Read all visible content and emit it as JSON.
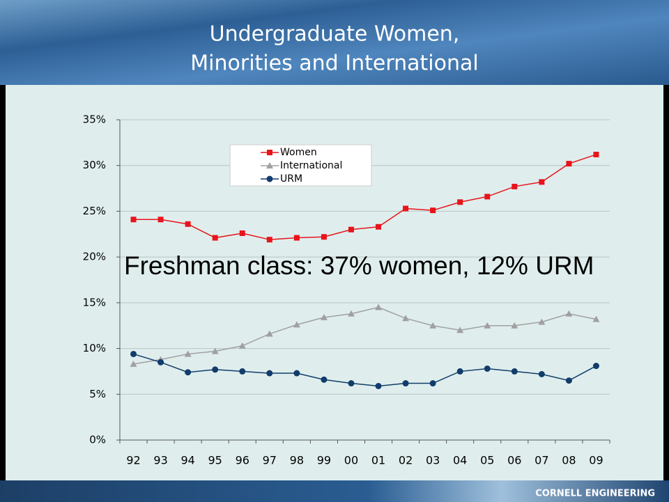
{
  "chart_data": {
    "type": "line",
    "title": [
      "Undergraduate Women,",
      "Minorities and International"
    ],
    "annotation": "Freshman class: 37% women, 12% URM",
    "categories": [
      "92",
      "93",
      "94",
      "95",
      "96",
      "97",
      "98",
      "99",
      "00",
      "01",
      "02",
      "03",
      "04",
      "05",
      "06",
      "07",
      "08",
      "09"
    ],
    "series": [
      {
        "name": "Women",
        "color": "#e8141b",
        "marker": "square",
        "values": [
          24.1,
          24.1,
          23.6,
          22.1,
          22.6,
          21.9,
          22.1,
          22.2,
          23.0,
          23.3,
          25.3,
          25.1,
          26.0,
          26.6,
          27.7,
          28.2,
          30.2,
          31.2
        ]
      },
      {
        "name": "International",
        "color": "#a0a0a0",
        "marker": "triangle",
        "values": [
          8.3,
          8.8,
          9.4,
          9.7,
          10.3,
          11.6,
          12.6,
          13.4,
          13.8,
          14.5,
          13.3,
          12.5,
          12.0,
          12.5,
          12.5,
          12.9,
          13.8,
          13.2
        ]
      },
      {
        "name": "URM",
        "color": "#123c6b",
        "marker": "circle",
        "values": [
          9.4,
          8.5,
          7.4,
          7.7,
          7.5,
          7.3,
          7.3,
          6.6,
          6.2,
          5.9,
          6.2,
          6.2,
          7.5,
          7.8,
          7.5,
          7.2,
          6.5,
          8.1
        ]
      }
    ],
    "ylim": [
      0,
      35
    ],
    "yticks": [
      {
        "value": 0,
        "label": "0%"
      },
      {
        "value": 5,
        "label": "5%"
      },
      {
        "value": 10,
        "label": "10%"
      },
      {
        "value": 15,
        "label": "15%"
      },
      {
        "value": 20,
        "label": "20%"
      },
      {
        "value": 25,
        "label": "25%"
      },
      {
        "value": 30,
        "label": "30%"
      },
      {
        "value": 35,
        "label": "35%"
      }
    ],
    "grid": true,
    "legend": "upper center"
  },
  "footer": "CORNELL ENGINEERING"
}
